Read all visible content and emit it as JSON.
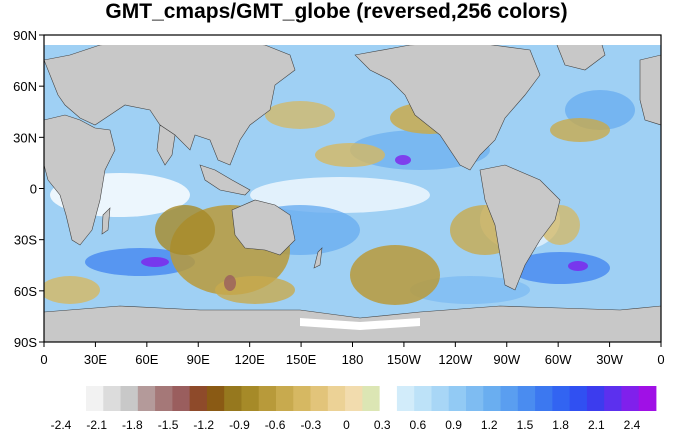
{
  "title": "GMT_cmaps/GMT_globe (reversed,256 colors)",
  "map": {
    "lat_labels": [
      "90N",
      "60N",
      "30N",
      "0",
      "30S",
      "60S",
      "90S"
    ],
    "lon_labels": [
      "0",
      "30E",
      "60E",
      "90E",
      "120E",
      "150E",
      "180",
      "150W",
      "120W",
      "90W",
      "60W",
      "30W",
      "0"
    ],
    "land_color": "#c8c8c8",
    "ice_color": "#ffffff"
  },
  "colorbar": {
    "labels": [
      "-2.4",
      "-2.1",
      "-1.8",
      "-1.5",
      "-1.2",
      "-0.9",
      "-0.6",
      "-0.3",
      "0",
      "0.3",
      "0.6",
      "0.9",
      "1.2",
      "1.5",
      "1.8",
      "2.1",
      "2.4"
    ],
    "colors": [
      "#f2f2f2",
      "#dcdcdc",
      "#c8c8c8",
      "#b49a9a",
      "#a57878",
      "#9a5e5e",
      "#8e4a2a",
      "#8a5a14",
      "#96781e",
      "#a68a28",
      "#b89a3a",
      "#c8aa4e",
      "#d6b862",
      "#e2c47a",
      "#ecd296",
      "#f2dcae",
      "#dce6b4",
      "#ffffff",
      "#d2ecfa",
      "#bde2f8",
      "#a8d6f6",
      "#92caf4",
      "#7ebcf2",
      "#6aaef0",
      "#5a9ef0",
      "#4a8cf0",
      "#3c78f0",
      "#3264f2",
      "#3050f2",
      "#3c3cee",
      "#5c30ee",
      "#8020ec",
      "#a010e6"
    ]
  }
}
